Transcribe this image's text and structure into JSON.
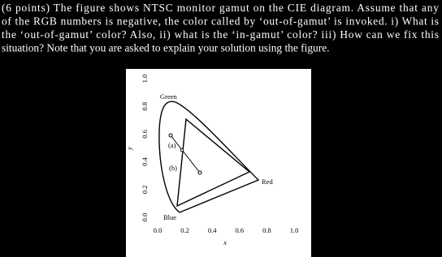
{
  "question": {
    "lines": [
      "(6 points) The figure shows NTSC monitor gamut on the CIE diagram. Assume that any",
      "of the RGB numbers is negative, the color called by ‘out-of-gamut’ is invoked. i) What is",
      "the ‘out-of-gamut’ color? Also, ii) what is the ‘in-gamut’ color? iii) How can we fix this",
      "situation? Note that you are asked to explain your solution using the figure."
    ]
  },
  "figure": {
    "labels": {
      "green": "Green",
      "red": "Red",
      "blue": "Blue",
      "a": "(a)",
      "b": "(b)"
    },
    "x_axis": {
      "label": "x",
      "ticks": [
        "0.0",
        "0.2",
        "0.4",
        "0.6",
        "0.8",
        "1.0"
      ]
    },
    "y_axis": {
      "label": "y",
      "ticks": [
        "0.0",
        "0.2",
        "0.4",
        "0.6",
        "0.8",
        "1.0"
      ]
    }
  }
}
